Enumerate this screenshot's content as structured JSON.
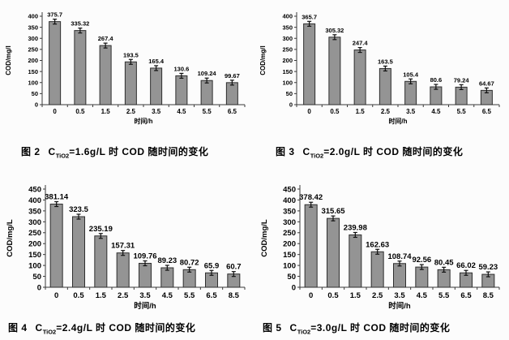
{
  "colors": {
    "background": "#fcfcfc",
    "bar_fill": "#949494",
    "bar_stroke": "#2e2e2e",
    "axis": "#3a3a3a",
    "error_bar": "#111111",
    "text": "#000000"
  },
  "chart_data": [
    {
      "type": "bar",
      "title": "图 2 CTiO2=1.6g/L 时 COD 随时间的变化",
      "caption": {
        "fig": "图 2",
        "c": "C",
        "sub": "TiO2",
        "rest": "=1.6g/L 时 COD 随时间的变化"
      },
      "categories": [
        "0",
        "0.5",
        "1.5",
        "2.5",
        "3.5",
        "4.5",
        "5.5",
        "6.5"
      ],
      "values": [
        375.7,
        335.32,
        267.4,
        193.5,
        165.4,
        130.6,
        109.24,
        99.67
      ],
      "labels": [
        "375.7",
        "335.32",
        "267.4",
        "193.5",
        "165.4",
        "130.6",
        "109.24",
        "99.67"
      ],
      "xlabel": "时间/h",
      "ylabel": "COD/mg/l",
      "ylim": [
        0,
        400
      ],
      "ytick_step": 50,
      "error_bars": true,
      "grid": false,
      "legend": false
    },
    {
      "type": "bar",
      "title": "图 3 CTiO2=2.0g/L 时 COD 随时间的变化",
      "caption": {
        "fig": "图 3",
        "c": "C",
        "sub": "TiO2",
        "rest": "=2.0g/L 时 COD 随时间的变化"
      },
      "categories": [
        "0",
        "0.5",
        "1.5",
        "2.5",
        "3.5",
        "4.5",
        "5.5",
        "6.5"
      ],
      "values": [
        365.7,
        305.32,
        247.4,
        163.5,
        105.4,
        80.6,
        79.24,
        64.67
      ],
      "labels": [
        "365.7",
        "305.32",
        "247.4",
        "163.5",
        "105.4",
        "80.6",
        "79.24",
        "64.67"
      ],
      "xlabel": "时间/h",
      "ylabel": "COD/mg/l",
      "ylim": [
        0,
        400
      ],
      "ytick_step": 50,
      "error_bars": true,
      "grid": false,
      "legend": false
    },
    {
      "type": "bar",
      "title": "图 4 CTiO2=2.4g/L 时 COD 随时间的变化",
      "caption": {
        "fig": "图 4",
        "c": "C",
        "sub": "TiO2",
        "rest": "=2.4g/L 时 COD 随时间的变化"
      },
      "categories": [
        "0",
        "0.5",
        "1.5",
        "2.5",
        "3.5",
        "4.5",
        "5.5",
        "6.5",
        "8.5"
      ],
      "values": [
        381.14,
        323.5,
        235.19,
        157.31,
        109.76,
        89.23,
        80.72,
        65.9,
        60.7
      ],
      "labels": [
        "381.14",
        "323.5",
        "235.19",
        "157.31",
        "109.76",
        "89.23",
        "80.72",
        "65.9",
        "60.7"
      ],
      "xlabel": "时间/h",
      "ylabel": "COD/mg/L",
      "ylim": [
        0,
        450
      ],
      "ytick_step": 50,
      "error_bars": true,
      "grid": false,
      "legend": false
    },
    {
      "type": "bar",
      "title": "图 5 CTiO2=3.0g/L 时 COD 随时间的变化",
      "caption": {
        "fig": "图 5",
        "c": "C",
        "sub": "TiO2",
        "rest": "=3.0g/L 时 COD 随时间的变化"
      },
      "categories": [
        "0",
        "0.5",
        "1.5",
        "2.5",
        "3.5",
        "4.5",
        "5.5",
        "6.5",
        "8.5"
      ],
      "values": [
        378.42,
        315.65,
        239.98,
        162.63,
        108.74,
        92.56,
        80.45,
        66.02,
        59.23
      ],
      "labels": [
        "378.42",
        "315.65",
        "239.98",
        "162.63",
        "108.74",
        "92.56",
        "80.45",
        "66.02",
        "59.23"
      ],
      "xlabel": "时间/h",
      "ylabel": "COD/mg/L",
      "ylim": [
        0,
        450
      ],
      "ytick_step": 50,
      "error_bars": true,
      "grid": false,
      "legend": false
    }
  ]
}
